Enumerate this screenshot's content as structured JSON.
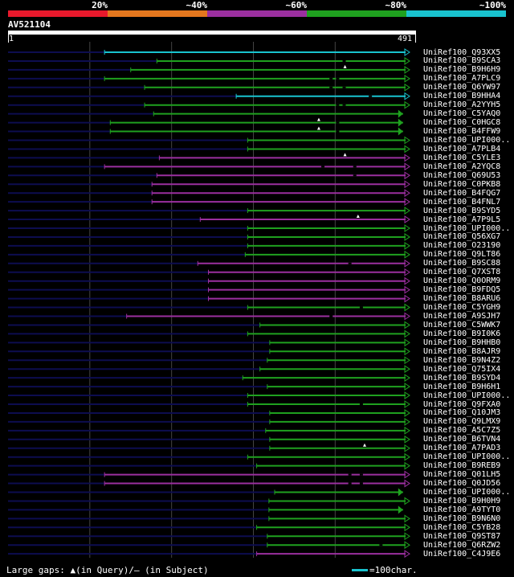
{
  "colors": {
    "background": "#000000",
    "text": "#ffffff",
    "unaligned": "#0d0d50",
    "grid": "#444444",
    "gap_mark": "#000000"
  },
  "legend": [
    {
      "label": "20%",
      "color": "#e8192c"
    },
    {
      "label": "~40%",
      "color": "#e4771e"
    },
    {
      "label": "~60%",
      "color": "#9b2f9f"
    },
    {
      "label": "~80%",
      "color": "#1fa11f"
    },
    {
      "label": "~100%",
      "color": "#19c3cf"
    }
  ],
  "query": {
    "name": "AV521104",
    "start": "1",
    "end": "491",
    "length": 491
  },
  "chart_data": {
    "type": "alignment-overview",
    "query_length": 491,
    "grid_positions": [
      100,
      200,
      300,
      400
    ],
    "identity_colors": {
      "20": "#e8192c",
      "40": "#e4771e",
      "60": "#9b2f9f",
      "80": "#1fa11f",
      "100": "#19c3cf"
    },
    "hits": [
      {
        "name": "UniRef100_Q93XX5",
        "start": 118,
        "end": 491,
        "identity": 100,
        "marks": []
      },
      {
        "name": "UniRef100_B9SCA3",
        "start": 182,
        "end": 491,
        "identity": 80,
        "marks": [
          411
        ]
      },
      {
        "name": "UniRef100_B9H6H9",
        "start": 150,
        "end": 491,
        "identity": 80,
        "marks": [],
        "query_gap": 412
      },
      {
        "name": "UniRef100_A7PLC9",
        "start": 118,
        "end": 491,
        "identity": 80,
        "marks": [
          395,
          403
        ]
      },
      {
        "name": "UniRef100_Q6YW97",
        "start": 167,
        "end": 491,
        "identity": 80,
        "marks": [
          395,
          411
        ]
      },
      {
        "name": "UniRef100_B9HHA4",
        "start": 279,
        "end": 491,
        "identity": 100,
        "marks": [
          443
        ]
      },
      {
        "name": "UniRef100_A2YYH5",
        "start": 167,
        "end": 491,
        "identity": 80,
        "marks": [
          403,
          411
        ]
      },
      {
        "name": "UniRef100_C5YAQ0",
        "start": 178,
        "end": 483,
        "identity": 80,
        "marks": [],
        "end_arrow": true
      },
      {
        "name": "UniRef100_C0HGC8",
        "start": 125,
        "end": 483,
        "identity": 80,
        "marks": [
          403
        ],
        "query_gap": 380,
        "end_arrow": true
      },
      {
        "name": "UniRef100_B4FFW9",
        "start": 125,
        "end": 483,
        "identity": 80,
        "marks": [
          403
        ],
        "query_gap": 380,
        "end_arrow": true
      },
      {
        "name": "UniRef100_UPI000..",
        "start": 293,
        "end": 491,
        "identity": 80,
        "marks": []
      },
      {
        "name": "UniRef100_A7PLB4",
        "start": 293,
        "end": 491,
        "identity": 80,
        "marks": []
      },
      {
        "name": "UniRef100_C5YLE3",
        "start": 185,
        "end": 491,
        "identity": 60,
        "marks": [],
        "query_gap": 412
      },
      {
        "name": "UniRef100_A2YQC8",
        "start": 118,
        "end": 491,
        "identity": 60,
        "marks": [
          385,
          424
        ]
      },
      {
        "name": "UniRef100_Q69U53",
        "start": 182,
        "end": 491,
        "identity": 60,
        "marks": [
          424
        ]
      },
      {
        "name": "UniRef100_C0PKB8",
        "start": 176,
        "end": 491,
        "identity": 60,
        "marks": []
      },
      {
        "name": "UniRef100_B4FQG7",
        "start": 176,
        "end": 491,
        "identity": 60,
        "marks": []
      },
      {
        "name": "UniRef100_B4FNL7",
        "start": 176,
        "end": 491,
        "identity": 60,
        "marks": []
      },
      {
        "name": "UniRef100_B9SYD5",
        "start": 293,
        "end": 491,
        "identity": 80,
        "marks": []
      },
      {
        "name": "UniRef100_A7P9L5",
        "start": 235,
        "end": 491,
        "identity": 60,
        "marks": [],
        "query_gap": 428
      },
      {
        "name": "UniRef100_UPI000..",
        "start": 293,
        "end": 491,
        "identity": 80,
        "marks": []
      },
      {
        "name": "UniRef100_Q56XG7",
        "start": 293,
        "end": 491,
        "identity": 80,
        "marks": []
      },
      {
        "name": "UniRef100_O23190",
        "start": 293,
        "end": 491,
        "identity": 80,
        "marks": []
      },
      {
        "name": "UniRef100_Q9LT86",
        "start": 290,
        "end": 491,
        "identity": 80,
        "marks": []
      },
      {
        "name": "UniRef100_B9SC88",
        "start": 232,
        "end": 491,
        "identity": 60,
        "marks": [
          418
        ]
      },
      {
        "name": "UniRef100_Q7XST8",
        "start": 245,
        "end": 491,
        "identity": 60,
        "marks": []
      },
      {
        "name": "UniRef100_Q0ORM9",
        "start": 245,
        "end": 491,
        "identity": 60,
        "marks": []
      },
      {
        "name": "UniRef100_B9FDQ5",
        "start": 245,
        "end": 491,
        "identity": 60,
        "marks": []
      },
      {
        "name": "UniRef100_B8ARU6",
        "start": 245,
        "end": 491,
        "identity": 60,
        "marks": []
      },
      {
        "name": "UniRef100_C5YGH9",
        "start": 293,
        "end": 491,
        "identity": 80,
        "marks": [
          432
        ]
      },
      {
        "name": "UniRef100_A9SJH7",
        "start": 145,
        "end": 491,
        "identity": 60,
        "marks": [
          395
        ]
      },
      {
        "name": "UniRef100_C5WWK7",
        "start": 308,
        "end": 491,
        "identity": 80,
        "marks": []
      },
      {
        "name": "UniRef100_B9I0K6",
        "start": 293,
        "end": 491,
        "identity": 80,
        "marks": []
      },
      {
        "name": "UniRef100_B9HHB0",
        "start": 320,
        "end": 491,
        "identity": 80,
        "marks": []
      },
      {
        "name": "UniRef100_B8AJR9",
        "start": 320,
        "end": 491,
        "identity": 80,
        "marks": []
      },
      {
        "name": "UniRef100_B9N4Z2",
        "start": 317,
        "end": 491,
        "identity": 80,
        "marks": []
      },
      {
        "name": "UniRef100_Q75IX4",
        "start": 308,
        "end": 491,
        "identity": 80,
        "marks": []
      },
      {
        "name": "UniRef100_B9SYD4",
        "start": 287,
        "end": 491,
        "identity": 80,
        "marks": []
      },
      {
        "name": "UniRef100_B9H6H1",
        "start": 317,
        "end": 491,
        "identity": 80,
        "marks": []
      },
      {
        "name": "UniRef100_UPI000..",
        "start": 293,
        "end": 491,
        "identity": 80,
        "marks": []
      },
      {
        "name": "UniRef100_Q9FXA0",
        "start": 293,
        "end": 491,
        "identity": 80,
        "marks": [
          432
        ]
      },
      {
        "name": "UniRef100_Q10JM3",
        "start": 320,
        "end": 491,
        "identity": 80,
        "marks": []
      },
      {
        "name": "UniRef100_Q9LMX9",
        "start": 320,
        "end": 491,
        "identity": 80,
        "marks": []
      },
      {
        "name": "UniRef100_A5C7Z5",
        "start": 315,
        "end": 491,
        "identity": 80,
        "marks": []
      },
      {
        "name": "UniRef100_B6TVN4",
        "start": 320,
        "end": 491,
        "identity": 80,
        "marks": []
      },
      {
        "name": "UniRef100_A7PAD3",
        "start": 320,
        "end": 491,
        "identity": 80,
        "marks": [],
        "query_gap": 436
      },
      {
        "name": "UniRef100_UPI000..",
        "start": 293,
        "end": 491,
        "identity": 80,
        "marks": []
      },
      {
        "name": "UniRef100_B9REB9",
        "start": 304,
        "end": 491,
        "identity": 80,
        "marks": []
      },
      {
        "name": "UniRef100_Q01LH5",
        "start": 118,
        "end": 491,
        "identity": 60,
        "marks": [
          418,
          432
        ]
      },
      {
        "name": "UniRef100_Q0JD56",
        "start": 118,
        "end": 491,
        "identity": 60,
        "marks": [
          418,
          432
        ]
      },
      {
        "name": "UniRef100_UPI000..",
        "start": 326,
        "end": 483,
        "identity": 80,
        "marks": [],
        "end_arrow": true
      },
      {
        "name": "UniRef100_B9H0H9",
        "start": 319,
        "end": 491,
        "identity": 80,
        "marks": []
      },
      {
        "name": "UniRef100_A9TYT0",
        "start": 319,
        "end": 483,
        "identity": 80,
        "marks": [],
        "end_arrow": true
      },
      {
        "name": "UniRef100_B9N6N0",
        "start": 319,
        "end": 491,
        "identity": 80,
        "marks": []
      },
      {
        "name": "UniRef100_C5YB28",
        "start": 304,
        "end": 491,
        "identity": 80,
        "marks": []
      },
      {
        "name": "UniRef100_Q9ST87",
        "start": 317,
        "end": 491,
        "identity": 80,
        "marks": []
      },
      {
        "name": "UniRef100_Q6RZW2",
        "start": 317,
        "end": 491,
        "identity": 80,
        "marks": [
          456
        ]
      },
      {
        "name": "UniRef100_C4J9E6",
        "start": 304,
        "end": 491,
        "identity": 60,
        "marks": []
      }
    ]
  },
  "footer": {
    "gaps_text": "Large gaps: ▲(in Query)/– (in Subject)",
    "scale_text": "=100char.",
    "scale_color": "#19c3cf"
  }
}
